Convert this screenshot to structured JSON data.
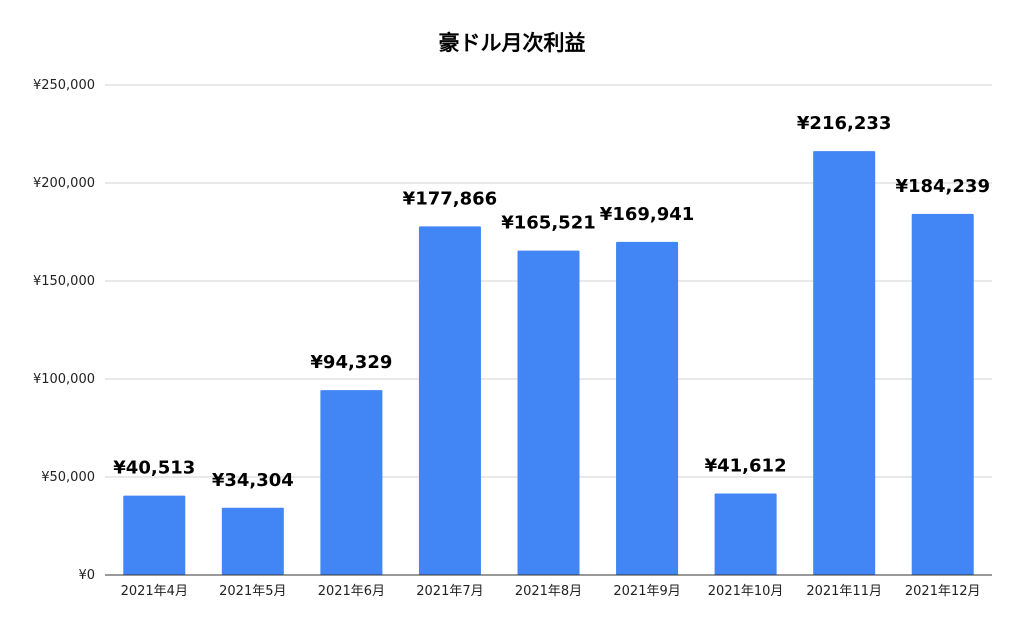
{
  "chart_data": {
    "type": "bar",
    "title": "豪ドル月次利益",
    "xlabel": "",
    "ylabel": "",
    "categories": [
      "2021年4月",
      "2021年5月",
      "2021年6月",
      "2021年7月",
      "2021年8月",
      "2021年9月",
      "2021年10月",
      "2021年11月",
      "2021年12月"
    ],
    "values": [
      40513,
      34304,
      94329,
      177866,
      165521,
      169941,
      41612,
      216233,
      184239
    ],
    "data_labels": [
      "¥40,513",
      "¥34,304",
      "¥94,329",
      "¥177,866",
      "¥165,521",
      "¥169,941",
      "¥41,612",
      "¥216,233",
      "¥184,239"
    ],
    "ylim": [
      0,
      250000
    ],
    "yticks": [
      0,
      50000,
      100000,
      150000,
      200000,
      250000
    ],
    "ytick_labels": [
      "¥0",
      "¥50,000",
      "¥100,000",
      "¥150,000",
      "¥200,000",
      "¥250,000"
    ],
    "grid": true,
    "legend": "none",
    "colors": {
      "bar": "#4285f4",
      "grid": "#d3d3d3",
      "baseline": "#333333",
      "text": "#000000"
    }
  }
}
